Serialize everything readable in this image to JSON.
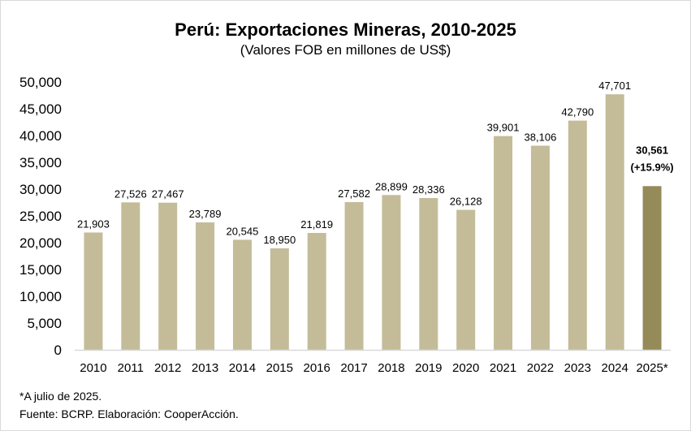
{
  "chart_data": {
    "type": "bar",
    "title": "Perú: Exportaciones Mineras, 2010-2025",
    "subtitle": "(Valores FOB en millones de US$)",
    "xlabel": "",
    "ylabel": "",
    "categories": [
      "2010",
      "2011",
      "2012",
      "2013",
      "2014",
      "2015",
      "2016",
      "2017",
      "2018",
      "2019",
      "2020",
      "2021",
      "2022",
      "2023",
      "2024",
      "2025*"
    ],
    "values": [
      21903,
      27526,
      27467,
      23789,
      20545,
      18950,
      21819,
      27582,
      28899,
      28336,
      26128,
      39901,
      38106,
      42790,
      47701,
      30561
    ],
    "value_labels": [
      "21,903",
      "27,526",
      "27,467",
      "23,789",
      "20,545",
      "18,950",
      "21,819",
      "27,582",
      "28,899",
      "28,336",
      "26,128",
      "39,901",
      "38,106",
      "42,790",
      "47,701",
      "30,561"
    ],
    "highlight_index": 15,
    "highlight_extra_label": "(+15.9%)",
    "ylim": [
      0,
      50000
    ],
    "yticks": [
      0,
      5000,
      10000,
      15000,
      20000,
      25000,
      30000,
      35000,
      40000,
      45000,
      50000
    ],
    "ytick_labels": [
      "0",
      "5,000",
      "10,000",
      "15,000",
      "20,000",
      "25,000",
      "30,000",
      "35,000",
      "40,000",
      "45,000",
      "50,000"
    ],
    "grid": false,
    "legend": "none",
    "colors": {
      "bar": "#c4bc98",
      "highlight_bar": "#958b58",
      "axis": "#d9d9d9"
    }
  },
  "notes": {
    "footnote": "*A julio de 2025.",
    "source": "Fuente: BCRP. Elaboración: CooperAcción."
  }
}
